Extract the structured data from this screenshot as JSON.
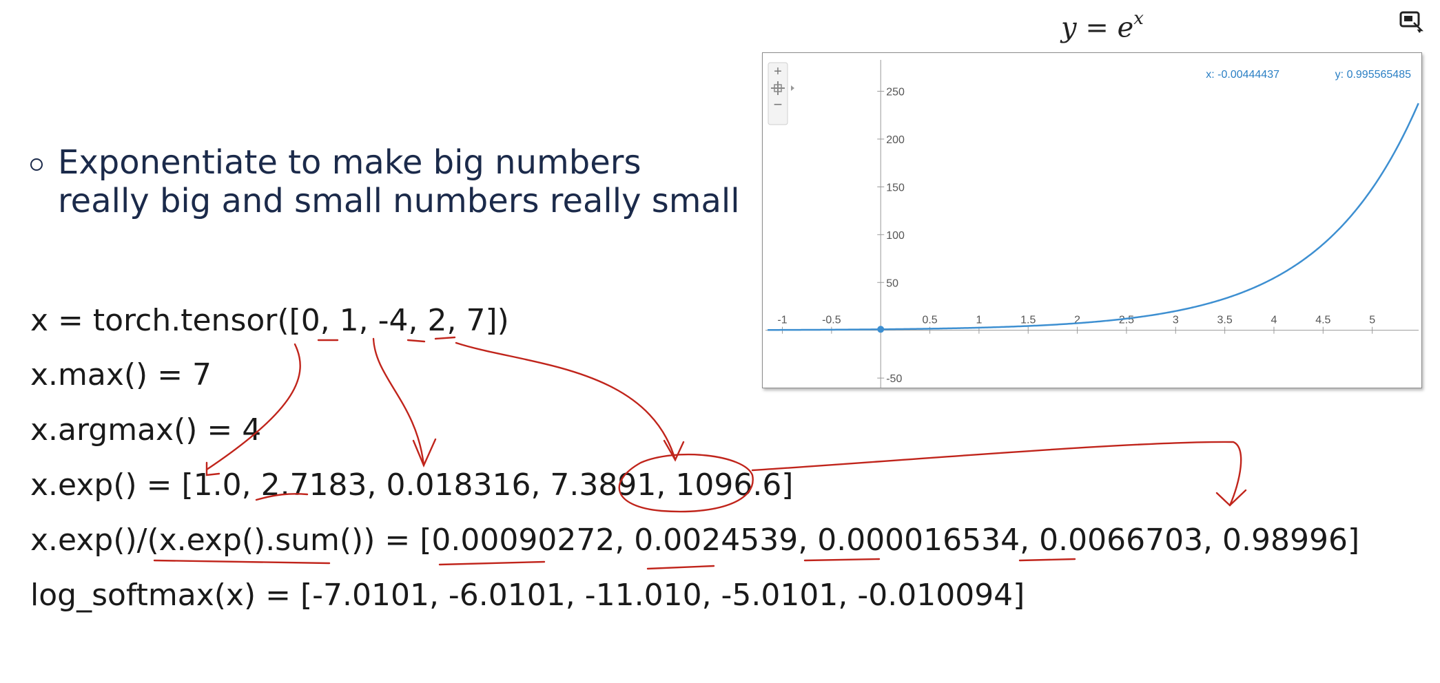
{
  "bullet": {
    "line1": "Exponentiate to make big numbers",
    "line2": "really big and small numbers really small"
  },
  "code_lines": [
    "x = torch.tensor([0, 1, -4, 2, 7])",
    "x.max() = 7",
    "x.argmax() = 4",
    "x.exp() = [1.0, 2.7183, 0.018316, 7.3891, 1096.6]",
    "x.exp()/(x.exp().sum()) = [0.00090272, 0.0024539, 0.000016534, 0.0066703, 0.98996]",
    "log_softmax(x) = [-7.0101, -6.0101, -11.010, -5.0101, -0.010094]"
  ],
  "graph": {
    "title_base": "y = e",
    "title_exp": "x",
    "readout_x": "x: -0.00444437",
    "readout_y": "y: 0.995565485",
    "controls": {
      "plus": "+",
      "minus": "−"
    },
    "curve_color": "#3d8fd1",
    "readout_color": "#2a7fc4"
  },
  "annotation_color": "#c0241b",
  "chart_data": {
    "type": "line",
    "function": "y = e^x",
    "x_ticks": [
      -1,
      -0.5,
      0.5,
      1,
      1.5,
      2,
      2.5,
      3,
      3.5,
      4,
      4.5,
      5
    ],
    "x_tick_labels": [
      "-1",
      "-0.5",
      "0.5",
      "1",
      "1.5",
      "2",
      "2.5",
      "3",
      "3.5",
      "4",
      "4.5",
      "5"
    ],
    "y_ticks": [
      -50,
      50,
      100,
      150,
      200,
      250
    ],
    "y_tick_labels": [
      "-50",
      "50",
      "100",
      "150",
      "200",
      "250"
    ],
    "xlim": [
      -1.2,
      5.5
    ],
    "ylim": [
      -60,
      290
    ],
    "highlight_point": {
      "x": 0,
      "y": 1
    },
    "grid": false
  }
}
